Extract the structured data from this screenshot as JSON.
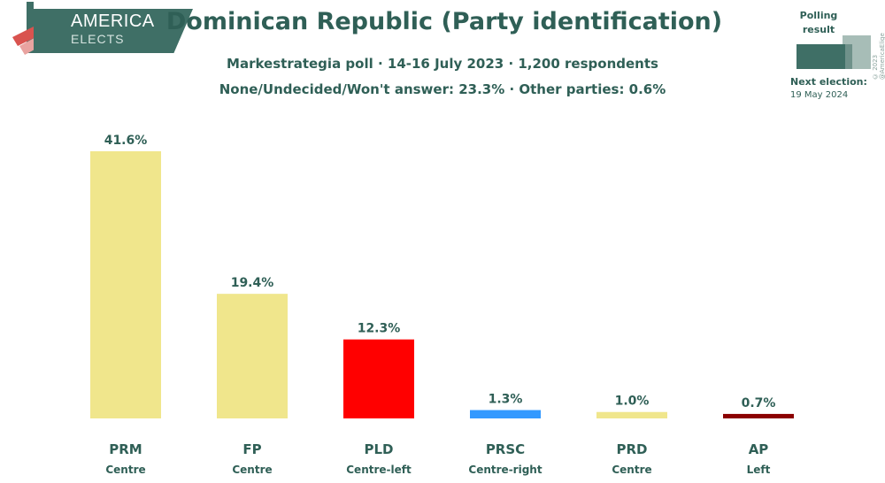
{
  "brand": {
    "line1": "AMERICA",
    "line2": "ELECTS"
  },
  "header": {
    "title": "Dominican Republic (Party identification)",
    "subtitle1": "Markestrategia poll · 14-16 July 2023 · 1,200 respondents",
    "subtitle2": "None/Undecided/Won't answer: 23.3% · Other parties: 0.6%"
  },
  "legend": {
    "title": "Polling result",
    "next_election_label": "Next election:",
    "next_election_date": "19 May 2024",
    "copyright": "© 2023 @AmericaElige"
  },
  "chart_data": {
    "type": "bar",
    "title": "Dominican Republic (Party identification)",
    "categories": [
      "PRM",
      "FP",
      "PLD",
      "PRSC",
      "PRD",
      "AP"
    ],
    "orientations": [
      "Centre",
      "Centre",
      "Centre-left",
      "Centre-right",
      "Centre",
      "Left"
    ],
    "values": [
      41.6,
      19.4,
      12.3,
      1.3,
      1.0,
      0.7
    ],
    "value_labels": [
      "41.6%",
      "19.4%",
      "12.3%",
      "1.3%",
      "1.0%",
      "0.7%"
    ],
    "colors": [
      "#f0e68c",
      "#f0e68c",
      "#ff0000",
      "#3399ff",
      "#f0e68c",
      "#8b0000"
    ],
    "ylim": [
      0,
      41.6
    ],
    "xlabel": "",
    "ylabel": ""
  }
}
